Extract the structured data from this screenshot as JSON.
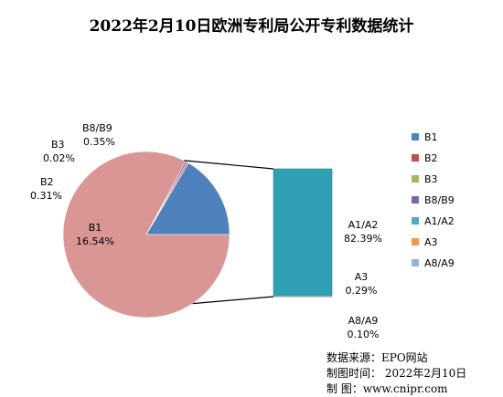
{
  "title": "2022年2月10日欧洲专利局公开专利数据统计",
  "chart_data": {
    "type": "pie",
    "title": "2022年2月10日欧洲专利局公开专利数据统计",
    "subtype": "pie-of-bar",
    "slices": [
      {
        "name": "B1",
        "value": 16.54,
        "label": "16.54%",
        "color": "#4f81bd"
      },
      {
        "name": "B2",
        "value": 0.31,
        "label": "0.31%",
        "color": "#c0504d"
      },
      {
        "name": "B3",
        "value": 0.02,
        "label": "0.02%",
        "color": "#9bbb59"
      },
      {
        "name": "B8/B9",
        "value": 0.35,
        "label": "0.35%",
        "color": "#8064a2"
      },
      {
        "name": "A1/A2",
        "value": 82.39,
        "label": "82.39%",
        "color": "#4bacc6"
      },
      {
        "name": "A3",
        "value": 0.29,
        "label": "0.29%",
        "color": "#f79646"
      },
      {
        "name": "A8/A9",
        "value": 0.1,
        "label": "0.10%",
        "color": "#95b3d7"
      }
    ],
    "main_pie_other_color": "#d99694",
    "bar_stack_color": "#2f9fb3",
    "legend_placement": "right"
  },
  "source": {
    "line1": "数据来源：EPO网站",
    "line2": "制图时间：  2022年2月10日",
    "line3": "制      图：www.cnipr.com"
  }
}
